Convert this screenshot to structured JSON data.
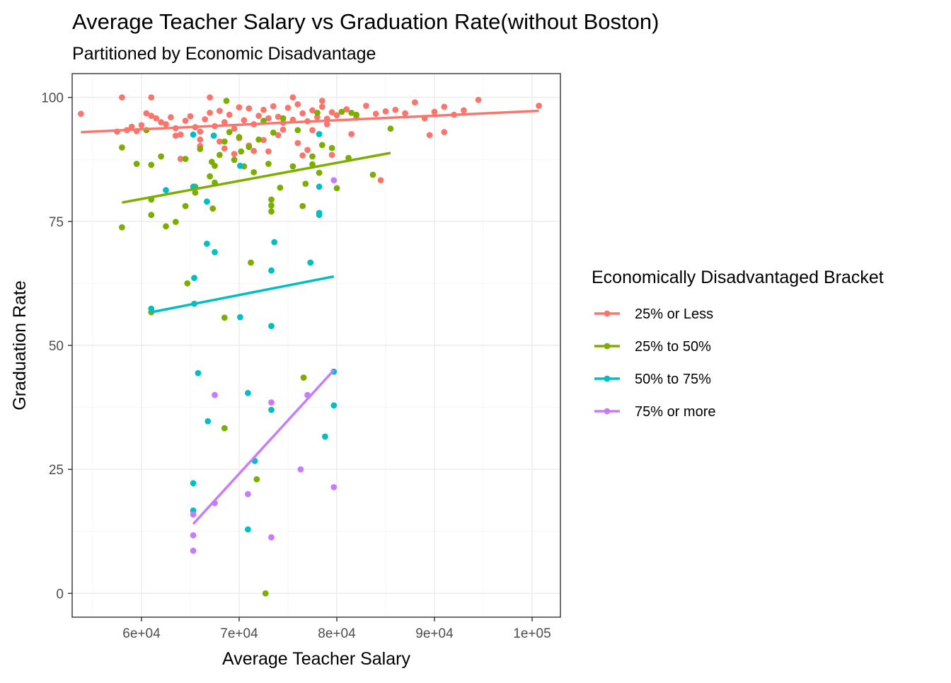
{
  "chart_data": {
    "type": "scatter",
    "title": "Average Teacher Salary vs Graduation Rate(without Boston)",
    "subtitle": "Partitioned by Economic Disadvantage",
    "xlabel": "Average Teacher Salary",
    "ylabel": "Graduation Rate",
    "xlim": [
      52900,
      102900
    ],
    "ylim": [
      -4.8,
      104.8
    ],
    "x_ticks": [
      60000,
      70000,
      80000,
      90000,
      100000
    ],
    "x_tick_labels": [
      "6e+04",
      "7e+04",
      "8e+04",
      "9e+04",
      "1e+05"
    ],
    "y_ticks": [
      0,
      25,
      50,
      75,
      100
    ],
    "y_tick_labels": [
      "0",
      "25",
      "50",
      "75",
      "100"
    ],
    "grid": true,
    "legend": {
      "title": "Economically Disadvantaged Bracket",
      "position": "right"
    },
    "series": [
      {
        "name": "25% or Less",
        "color": "#F8766D",
        "trend": [
          [
            53800,
            93.0
          ],
          [
            100700,
            97.3
          ]
        ],
        "points": [
          [
            53800,
            96.7
          ],
          [
            57500,
            93.1
          ],
          [
            58500,
            93.4
          ],
          [
            59000,
            94.1
          ],
          [
            59500,
            93.2
          ],
          [
            60000,
            94.4
          ],
          [
            60500,
            96.8
          ],
          [
            61000,
            96.3
          ],
          [
            61500,
            95.8
          ],
          [
            62000,
            95.0
          ],
          [
            62500,
            94.6
          ],
          [
            63000,
            96.0
          ],
          [
            63500,
            93.8
          ],
          [
            64000,
            92.5
          ],
          [
            64500,
            95.3
          ],
          [
            65000,
            96.2
          ],
          [
            65500,
            94.0
          ],
          [
            66000,
            93.1
          ],
          [
            66500,
            95.6
          ],
          [
            67000,
            96.9
          ],
          [
            67500,
            94.2
          ],
          [
            68000,
            97.3
          ],
          [
            68500,
            95.0
          ],
          [
            69000,
            96.5
          ],
          [
            69500,
            93.7
          ],
          [
            70000,
            98.0
          ],
          [
            70500,
            95.4
          ],
          [
            71000,
            97.8
          ],
          [
            71500,
            94.6
          ],
          [
            72000,
            96.3
          ],
          [
            72500,
            97.5
          ],
          [
            73000,
            95.8
          ],
          [
            73500,
            98.2
          ],
          [
            74000,
            96.1
          ],
          [
            74500,
            94.9
          ],
          [
            75000,
            97.9
          ],
          [
            75500,
            95.5
          ],
          [
            76000,
            98.6
          ],
          [
            76500,
            96.8
          ],
          [
            77000,
            95.2
          ],
          [
            77500,
            97.4
          ],
          [
            78000,
            96.0
          ],
          [
            78500,
            98.1
          ],
          [
            79000,
            95.7
          ],
          [
            79500,
            97.0
          ],
          [
            80000,
            96.4
          ],
          [
            81000,
            97.6
          ],
          [
            82000,
            95.9
          ],
          [
            83000,
            98.3
          ],
          [
            84000,
            96.7
          ],
          [
            85000,
            97.2
          ],
          [
            86000,
            97.5
          ],
          [
            87000,
            96.8
          ],
          [
            88000,
            99.0
          ],
          [
            89000,
            95.8
          ],
          [
            90000,
            97.1
          ],
          [
            91000,
            98.1
          ],
          [
            92000,
            96.5
          ],
          [
            93000,
            97.4
          ],
          [
            94500,
            99.5
          ],
          [
            100700,
            98.3
          ],
          [
            58000,
            100.0
          ],
          [
            61000,
            100.0
          ],
          [
            67000,
            100.0
          ],
          [
            75500,
            100.0
          ],
          [
            78500,
            99.3
          ],
          [
            63500,
            92.3
          ],
          [
            66000,
            90.2
          ],
          [
            68000,
            91.1
          ],
          [
            70000,
            91.8
          ],
          [
            71000,
            90.3
          ],
          [
            72500,
            91.4
          ],
          [
            74000,
            92.4
          ],
          [
            76000,
            90.8
          ],
          [
            77000,
            89.4
          ],
          [
            79500,
            88.4
          ],
          [
            76500,
            88.3
          ],
          [
            71500,
            89.2
          ],
          [
            68500,
            89.7
          ],
          [
            69500,
            88.6
          ],
          [
            73000,
            89.1
          ],
          [
            84500,
            83.3
          ],
          [
            89500,
            92.4
          ],
          [
            91000,
            93.0
          ],
          [
            81500,
            92.6
          ],
          [
            64000,
            87.6
          ],
          [
            66000,
            91.5
          ],
          [
            74500,
            93.5
          ],
          [
            77500,
            93.4
          ],
          [
            79000,
            94.6
          ]
        ]
      },
      {
        "name": "25% to 50%",
        "color": "#7CAE00",
        "trend": [
          [
            58000,
            78.8
          ],
          [
            85500,
            88.8
          ]
        ],
        "points": [
          [
            58000,
            73.8
          ],
          [
            58000,
            89.9
          ],
          [
            59500,
            86.6
          ],
          [
            60500,
            93.4
          ],
          [
            61000,
            86.4
          ],
          [
            61000,
            79.4
          ],
          [
            61000,
            76.3
          ],
          [
            61000,
            56.7
          ],
          [
            62000,
            88.1
          ],
          [
            62500,
            74.0
          ],
          [
            63500,
            74.9
          ],
          [
            64500,
            87.6
          ],
          [
            64500,
            78.1
          ],
          [
            64700,
            62.5
          ],
          [
            65500,
            82.0
          ],
          [
            65500,
            80.8
          ],
          [
            66000,
            89.6
          ],
          [
            67000,
            84.1
          ],
          [
            67200,
            87.0
          ],
          [
            67300,
            77.6
          ],
          [
            67500,
            86.2
          ],
          [
            67500,
            82.8
          ],
          [
            68000,
            88.4
          ],
          [
            68500,
            91.1
          ],
          [
            68500,
            55.6
          ],
          [
            68500,
            33.3
          ],
          [
            68700,
            99.3
          ],
          [
            69000,
            93.0
          ],
          [
            69500,
            87.4
          ],
          [
            70000,
            92.0
          ],
          [
            70500,
            86.1
          ],
          [
            71000,
            90.0
          ],
          [
            71200,
            66.7
          ],
          [
            71500,
            84.9
          ],
          [
            71800,
            23.0
          ],
          [
            72000,
            91.5
          ],
          [
            72500,
            95.3
          ],
          [
            72700,
            0.0
          ],
          [
            73000,
            86.6
          ],
          [
            73300,
            79.4
          ],
          [
            73300,
            77.0
          ],
          [
            73500,
            92.9
          ],
          [
            74200,
            81.8
          ],
          [
            74500,
            95.8
          ],
          [
            75500,
            86.1
          ],
          [
            76000,
            93.4
          ],
          [
            76500,
            78.1
          ],
          [
            76600,
            43.5
          ],
          [
            76800,
            82.6
          ],
          [
            77500,
            86.5
          ],
          [
            77500,
            88.1
          ],
          [
            78000,
            96.9
          ],
          [
            78200,
            84.8
          ],
          [
            78500,
            90.4
          ],
          [
            79500,
            89.8
          ],
          [
            80000,
            81.7
          ],
          [
            80500,
            97.1
          ],
          [
            81200,
            87.8
          ],
          [
            81500,
            96.9
          ],
          [
            82000,
            96.5
          ],
          [
            83700,
            84.4
          ],
          [
            85500,
            93.7
          ],
          [
            73300,
            78.2
          ],
          [
            70200,
            89.1
          ]
        ]
      },
      {
        "name": "50% to 75%",
        "color": "#00BFC4",
        "trend": [
          [
            61000,
            56.7
          ],
          [
            79700,
            63.9
          ]
        ],
        "points": [
          [
            61000,
            57.4
          ],
          [
            62500,
            81.3
          ],
          [
            65300,
            92.5
          ],
          [
            65300,
            82.0
          ],
          [
            65400,
            63.6
          ],
          [
            65400,
            58.4
          ],
          [
            65300,
            22.2
          ],
          [
            65300,
            16.7
          ],
          [
            65800,
            44.4
          ],
          [
            66700,
            79.0
          ],
          [
            66700,
            70.5
          ],
          [
            66800,
            34.7
          ],
          [
            67400,
            92.3
          ],
          [
            67500,
            68.8
          ],
          [
            70100,
            86.2
          ],
          [
            70100,
            55.7
          ],
          [
            70900,
            40.4
          ],
          [
            70900,
            12.9
          ],
          [
            71600,
            26.7
          ],
          [
            73300,
            65.1
          ],
          [
            73300,
            53.9
          ],
          [
            73300,
            37.0
          ],
          [
            73600,
            70.8
          ],
          [
            77300,
            66.7
          ],
          [
            78200,
            92.6
          ],
          [
            78200,
            82.0
          ],
          [
            78200,
            76.7
          ],
          [
            78200,
            76.3
          ],
          [
            78800,
            31.6
          ],
          [
            79700,
            44.7
          ],
          [
            79700,
            37.9
          ]
        ]
      },
      {
        "name": "75% or more",
        "color": "#C77CFF",
        "trend": [
          [
            65300,
            14.0
          ],
          [
            79700,
            45.0
          ]
        ],
        "points": [
          [
            65300,
            15.9
          ],
          [
            65300,
            11.7
          ],
          [
            65300,
            8.6
          ],
          [
            67500,
            40.0
          ],
          [
            67500,
            18.2
          ],
          [
            70900,
            20.0
          ],
          [
            73300,
            38.5
          ],
          [
            73300,
            11.3
          ],
          [
            76300,
            25.0
          ],
          [
            77000,
            40.0
          ],
          [
            79700,
            83.3
          ],
          [
            79700,
            21.4
          ]
        ]
      }
    ]
  }
}
